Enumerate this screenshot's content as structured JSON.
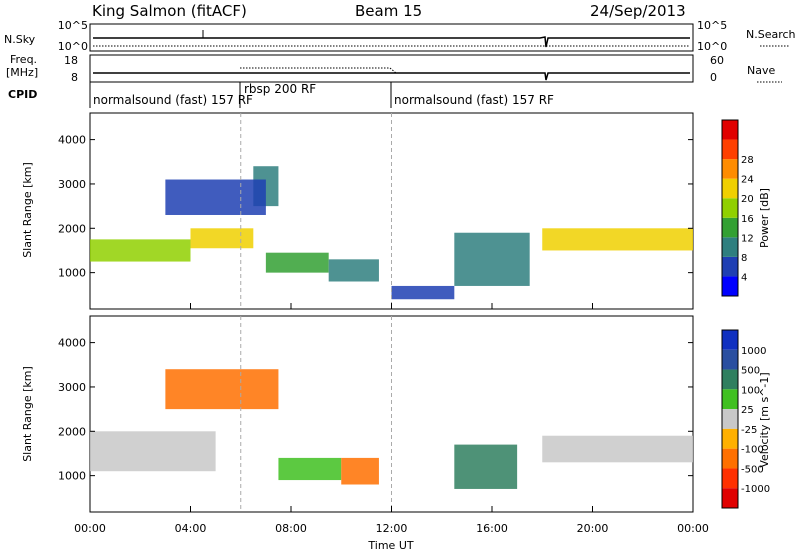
{
  "header": {
    "station": "King Salmon (fitACF)",
    "beam": "Beam 15",
    "date": "24/Sep/2013"
  },
  "noise_panel": {
    "left_label": "N.Sky",
    "left_ticks": [
      "10^5",
      "10^0"
    ],
    "right_label": "N.Search",
    "right_ticks": [
      "10^5",
      "10^0"
    ]
  },
  "freq_panel": {
    "left_label_1": "Freq.",
    "left_label_2": "[MHz]",
    "left_ticks": [
      "18",
      "8"
    ],
    "right_label": "Nave",
    "right_ticks": [
      "60",
      "0"
    ]
  },
  "cpid_panel": {
    "label": "CPID",
    "segments": [
      {
        "label": "normalsound (fast) 157 RF",
        "start_h": 0.0,
        "end_h": 12.0
      },
      {
        "label": "rbsp 200 RF",
        "start_h": 6.0,
        "end_h": 12.0
      },
      {
        "label": "normalsound (fast) 157 RF",
        "start_h": 12.0,
        "end_h": 24.0
      }
    ]
  },
  "chart_data": [
    {
      "type": "heatmap",
      "name": "power",
      "xlabel": "Time UT",
      "ylabel": "Slant Range [km]",
      "xlim": [
        0,
        24
      ],
      "ylim": [
        180,
        4600
      ],
      "x_ticks": [
        "00:00",
        "04:00",
        "08:00",
        "12:00",
        "16:00",
        "20:00",
        "00:00"
      ],
      "y_ticks": [
        1000,
        2000,
        3000,
        4000
      ],
      "colorbar": {
        "label": "Power [dB]",
        "ticks": [
          "4",
          "8",
          "12",
          "16",
          "20",
          "24",
          "28"
        ],
        "colors": [
          "#0000ff",
          "#1f3fb3",
          "#2f7f7f",
          "#33a033",
          "#90d000",
          "#f0d000",
          "#ff8c00",
          "#ff4000",
          "#e00000"
        ]
      },
      "bands": [
        {
          "t0": 0.0,
          "t1": 4.0,
          "r0": 1250,
          "r1": 1750,
          "v": 20
        },
        {
          "t0": 4.0,
          "t1": 6.5,
          "r0": 1550,
          "r1": 2000,
          "v": 22
        },
        {
          "t0": 6.5,
          "t1": 7.5,
          "r0": 2500,
          "r1": 3400,
          "v": 12
        },
        {
          "t0": 3.0,
          "t1": 7.0,
          "r0": 2300,
          "r1": 3100,
          "v": 8
        },
        {
          "t0": 7.0,
          "t1": 9.5,
          "r0": 1000,
          "r1": 1450,
          "v": 16
        },
        {
          "t0": 9.5,
          "t1": 11.5,
          "r0": 800,
          "r1": 1300,
          "v": 12
        },
        {
          "t0": 12.0,
          "t1": 14.5,
          "r0": 400,
          "r1": 700,
          "v": 8
        },
        {
          "t0": 14.5,
          "t1": 17.5,
          "r0": 700,
          "r1": 1900,
          "v": 12
        },
        {
          "t0": 18.0,
          "t1": 24.0,
          "r0": 1500,
          "r1": 2000,
          "v": 22
        }
      ]
    },
    {
      "type": "heatmap",
      "name": "velocity",
      "xlabel": "Time UT",
      "ylabel": "Slant Range [km]",
      "xlim": [
        0,
        24
      ],
      "ylim": [
        180,
        4600
      ],
      "x_ticks": [
        "00:00",
        "04:00",
        "08:00",
        "12:00",
        "16:00",
        "20:00",
        "00:00"
      ],
      "y_ticks": [
        1000,
        2000,
        3000,
        4000
      ],
      "colorbar": {
        "label": "Velocity [m s^-1]",
        "ticks": [
          "1000",
          "500",
          "100",
          "25",
          "-25",
          "-100",
          "-500",
          "-1000"
        ],
        "colors": [
          "#1030c0",
          "#2a4fa0",
          "#2f7f5f",
          "#40c020",
          "#c8c8c8",
          "#ffb000",
          "#ff7000",
          "#ff3000",
          "#e00000"
        ]
      },
      "bands": [
        {
          "t0": 0.0,
          "t1": 5.0,
          "r0": 1100,
          "r1": 2000,
          "v": 0
        },
        {
          "t0": 3.0,
          "t1": 7.5,
          "r0": 2500,
          "r1": 3400,
          "v": -200
        },
        {
          "t0": 7.5,
          "t1": 10.0,
          "r0": 900,
          "r1": 1400,
          "v": 80
        },
        {
          "t0": 10.0,
          "t1": 11.5,
          "r0": 800,
          "r1": 1400,
          "v": -300
        },
        {
          "t0": 14.5,
          "t1": 17.0,
          "r0": 700,
          "r1": 1700,
          "v": 100
        },
        {
          "t0": 18.0,
          "t1": 24.0,
          "r0": 1300,
          "r1": 1900,
          "v": 0
        }
      ]
    }
  ]
}
